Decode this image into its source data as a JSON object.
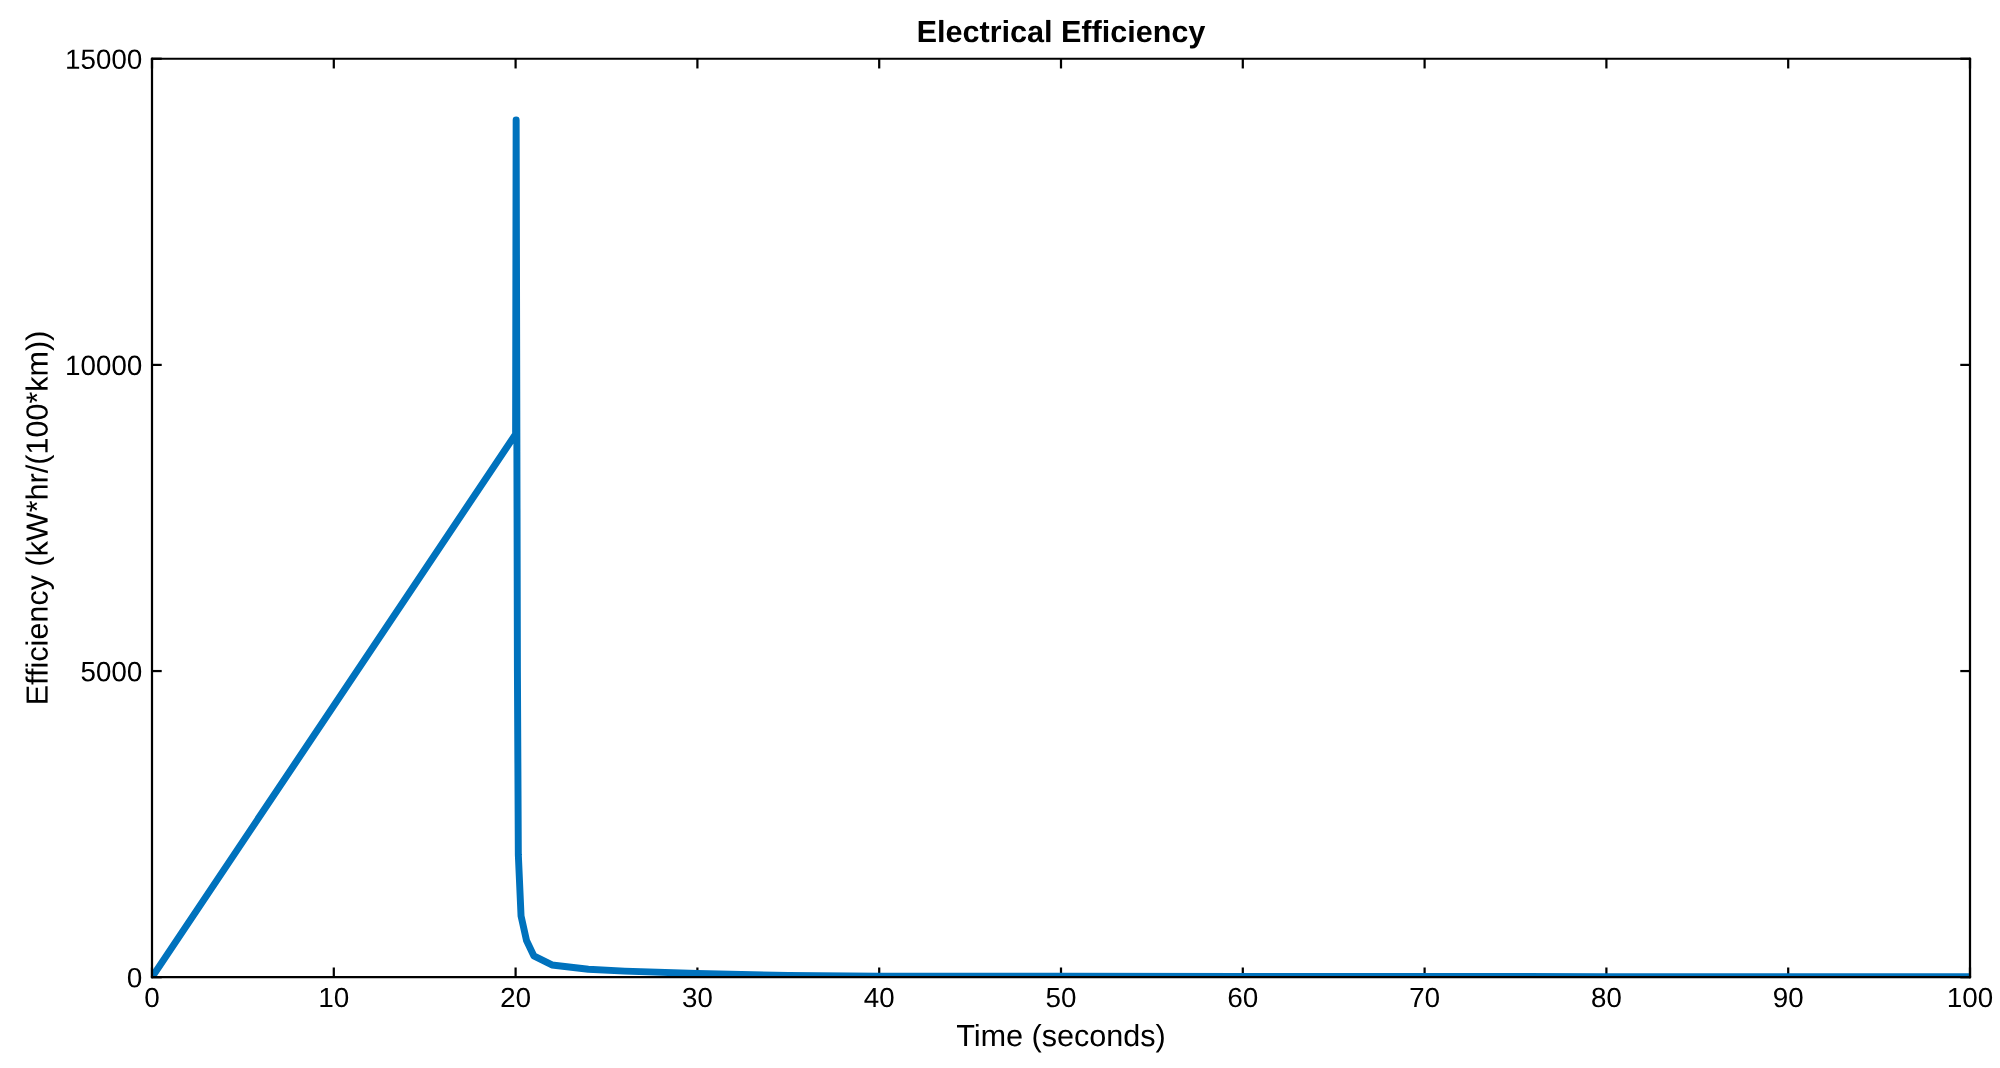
{
  "chart_data": {
    "type": "line",
    "title": "Electrical Efficiency",
    "xlabel": "Time (seconds)",
    "ylabel": "Efficiency (kW*hr/(100*km))",
    "xlim": [
      0,
      100
    ],
    "xticks": [
      0,
      10,
      20,
      30,
      40,
      50,
      60,
      70,
      80,
      90,
      100
    ],
    "ylim": [
      0,
      15000
    ],
    "yticks": [
      0,
      5000,
      10000,
      15000
    ],
    "grid": false,
    "series": [
      {
        "color": "#0072bd",
        "x": [
          0,
          20,
          20.03,
          20.1,
          20.15,
          20.3,
          20.6,
          21,
          22,
          24,
          26,
          30,
          35,
          40,
          50,
          60,
          80,
          100
        ],
        "values": [
          0,
          8870,
          14000,
          5000,
          2000,
          1000,
          600,
          350,
          200,
          130,
          100,
          60,
          30,
          15,
          15,
          12,
          10,
          10
        ]
      }
    ]
  }
}
